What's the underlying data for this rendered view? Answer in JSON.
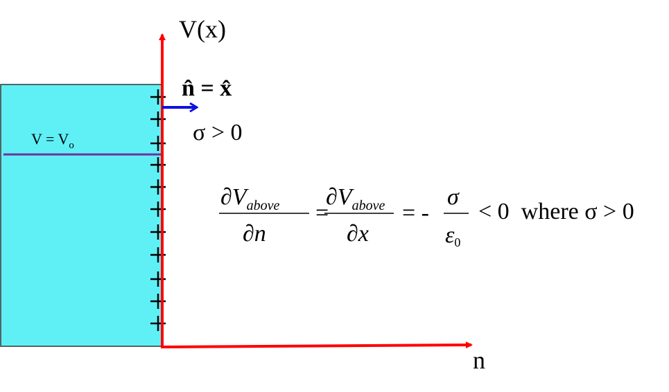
{
  "labels": {
    "y_axis": "V(x)",
    "x_axis": "n",
    "normal": "n̂ = x̂",
    "sigma_condition": "σ > 0",
    "potential": {
      "text": "V = V",
      "subscript": "o"
    }
  },
  "equation": {
    "fraction_1": {
      "numerator": "∂V",
      "numerator_subscript": "above",
      "denominator": "∂n"
    },
    "equals_1": "=",
    "fraction_2": {
      "numerator": "∂V",
      "numerator_subscript": "above",
      "denominator": "∂x"
    },
    "equals_2": "= -",
    "fraction_3": {
      "numerator": "σ",
      "denominator": "ε",
      "denominator_subscript": "0"
    },
    "tail": "< 0  where σ > 0"
  }
}
